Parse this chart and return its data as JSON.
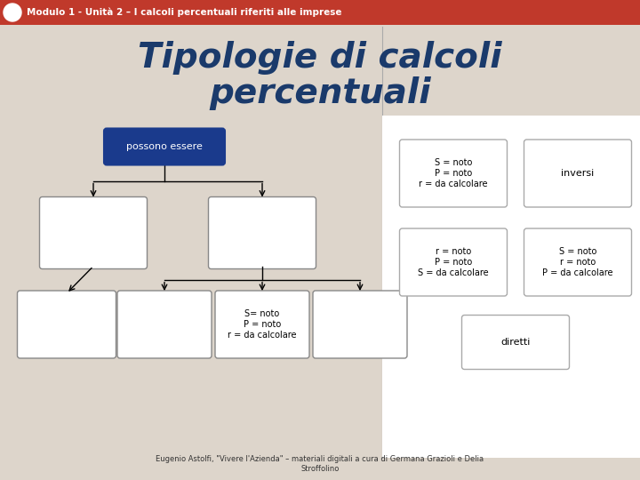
{
  "bg_color": "#ddd5cb",
  "header_color": "#c0392b",
  "header_text": "Modulo 1 - Unità 2 – I calcoli percentuali riferiti alle imprese",
  "header_text_color": "#ffffff",
  "title_line1": "Tipologie di calcoli",
  "title_line2": "percentuali",
  "title_color": "#1a3a6b",
  "right_panel_bg": "#ffffff",
  "root_box_text": "possono essere",
  "root_box_fill": "#1a3a8c",
  "root_box_text_color": "#ffffff",
  "footer": "Eugenio Astolfi, \"Vivere l'Azienda\" – materiali digitali a cura di Germana Grazioli e Delia\nStroffolino"
}
